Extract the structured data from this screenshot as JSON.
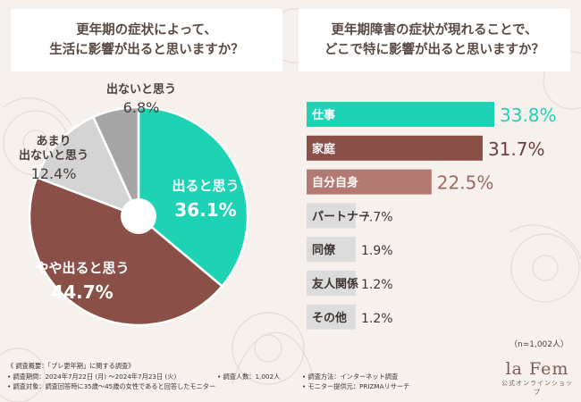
{
  "left_title": [
    "更年期の症状によって、",
    "生活に影響が出ると思いますか？"
  ],
  "right_title": [
    "更年期障害の症状が現れることで、",
    "どこで特に影響が出ると思いますか？"
  ],
  "colors": {
    "teal": "#1ed3b4",
    "brown": "#8a5047",
    "light_gray": "#d4d4d4",
    "dark_gray": "#a6a6a6",
    "rose": "#b27a70",
    "gray_bar": "#dcdcdc"
  },
  "chart_data": [
    {
      "type": "pie",
      "slices": [
        {
          "label": "出ると思う",
          "value": 36.1,
          "display": "36.1%",
          "color": "#1ed3b4"
        },
        {
          "label": "やや出ると思う",
          "value": 44.7,
          "display": "44.7%",
          "color": "#8a5047"
        },
        {
          "label": "あまり出ないと思う",
          "value": 12.4,
          "display": "12.4%",
          "color": "#d4d4d4"
        },
        {
          "label": "出ないと思う",
          "value": 6.8,
          "display": "6.8%",
          "color": "#a6a6a6"
        }
      ]
    },
    {
      "type": "bar",
      "orientation": "horizontal",
      "categories": [
        "仕事",
        "家庭",
        "自分自身",
        "パートナー",
        "同僚",
        "友人関係",
        "その他"
      ],
      "values": [
        33.8,
        31.7,
        22.5,
        7.7,
        1.9,
        1.2,
        1.2
      ],
      "display": [
        "33.8%",
        "31.7%",
        "22.5%",
        "7.7%",
        "1.9%",
        "1.2%",
        "1.2%"
      ],
      "colors": [
        "#1ed3b4",
        "#8a5047",
        "#b27a70",
        "#dcdcdc",
        "#dcdcdc",
        "#dcdcdc",
        "#dcdcdc"
      ]
    }
  ],
  "sample_note": "（n=1,002人）",
  "footer": {
    "r1c1": "《 調査概要：「プレ更年期」に関する調査》",
    "r2c1": "• 調査期間：2024年7月22日 (月) 〜2024年7月23日 (火)",
    "r2c2": "• 調査人数：1,002人",
    "r2c3": "• 調査方法：インターネット調査",
    "r3c1": "• 調査対象：調査回答時に35歳〜45歳の女性であると回答したモニター",
    "r3c3": "• モニター提供元：PRIZMAリサーチ"
  },
  "logo": {
    "brand": "la Fem",
    "sub": "公式オンラインショップ"
  }
}
